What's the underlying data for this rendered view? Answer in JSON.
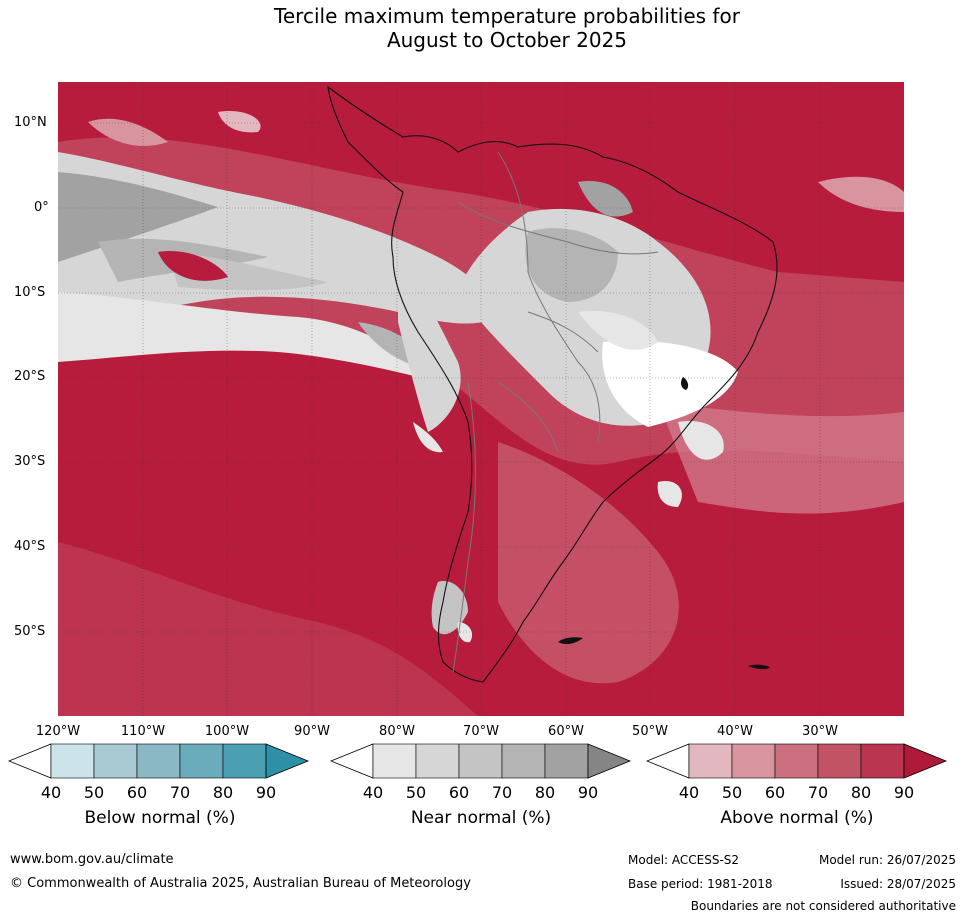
{
  "title_line1": "Tercile maximum temperature probabilities for",
  "title_line2": "August to October 2025",
  "lat_labels": [
    "10°N",
    "0°",
    "10°S",
    "20°S",
    "30°S",
    "40°S",
    "50°S"
  ],
  "lon_labels": [
    "120°W",
    "110°W",
    "100°W",
    "90°W",
    "80°W",
    "70°W",
    "60°W",
    "50°W",
    "40°W",
    "30°W"
  ],
  "colorbars": [
    {
      "title": "Below normal (%)",
      "ticks": [
        "40",
        "50",
        "60",
        "70",
        "80",
        "90"
      ],
      "colors": [
        "#ffffff",
        "#cce3ea",
        "#a8cad2",
        "#8ab8c4",
        "#6aacbb",
        "#4aa0b2",
        "#2e90a6"
      ]
    },
    {
      "title": "Near normal (%)",
      "ticks": [
        "40",
        "50",
        "60",
        "70",
        "80",
        "90"
      ],
      "colors": [
        "#ffffff",
        "#e6e6e6",
        "#d6d6d6",
        "#c4c4c4",
        "#b4b4b4",
        "#a2a2a2",
        "#858585"
      ]
    },
    {
      "title": "Above normal (%)",
      "ticks": [
        "40",
        "50",
        "60",
        "70",
        "80",
        "90"
      ],
      "colors": [
        "#ffffff",
        "#e3b7bf",
        "#d8949f",
        "#cc707f",
        "#c25365",
        "#b93550",
        "#b01a3a"
      ]
    }
  ],
  "footer": {
    "url": "www.bom.gov.au/climate",
    "copyright": "© Commonwealth of Australia 2025, Australian Bureau of Meteorology",
    "model": "Model: ACCESS-S2",
    "model_run": "Model run: 26/07/2025",
    "base_period": "Base period: 1981-2018",
    "issued": "Issued: 28/07/2025",
    "disclaimer": "Boundaries are not considered authoritative"
  }
}
